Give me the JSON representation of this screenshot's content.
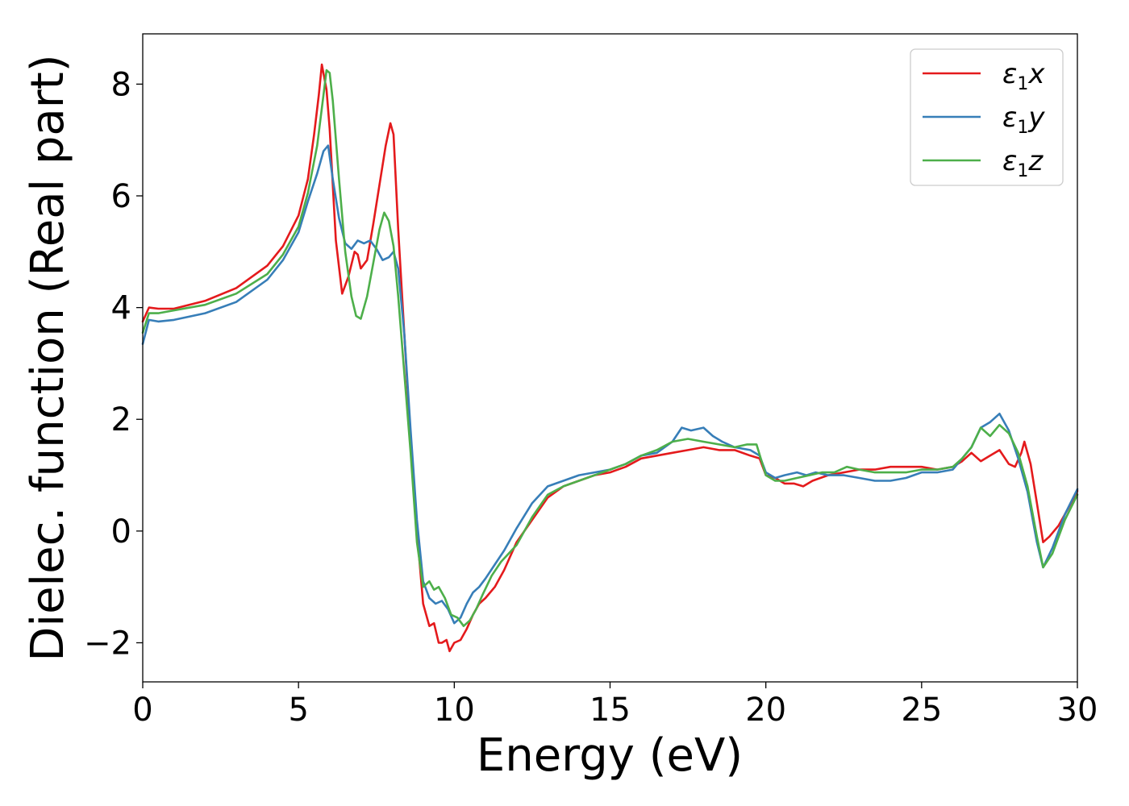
{
  "chart_data": {
    "type": "line",
    "xlabel": "Energy (eV)",
    "ylabel": "Dielec. function (Real part)",
    "xlim": [
      0,
      30
    ],
    "ylim": [
      -2.7,
      8.9
    ],
    "xticks": [
      0,
      5,
      10,
      15,
      20,
      25,
      30
    ],
    "xtick_labels": [
      "0",
      "5",
      "10",
      "15",
      "20",
      "25",
      "30"
    ],
    "yticks": [
      -2,
      0,
      2,
      4,
      6,
      8
    ],
    "ytick_labels": [
      "−2",
      "0",
      "2",
      "4",
      "6",
      "8"
    ],
    "grid": false,
    "legend": {
      "position": "top-right",
      "entries": [
        {
          "symbol": "ε",
          "sub": "1",
          "suffix": "x"
        },
        {
          "symbol": "ε",
          "sub": "1",
          "suffix": "y"
        },
        {
          "symbol": "ε",
          "sub": "1",
          "suffix": "z"
        }
      ]
    },
    "series": [
      {
        "color": "#e41a1c",
        "x": [
          0,
          0.2,
          0.5,
          1,
          2,
          3,
          4,
          4.5,
          5,
          5.3,
          5.5,
          5.65,
          5.75,
          5.9,
          6.0,
          6.2,
          6.4,
          6.6,
          6.8,
          6.9,
          7.0,
          7.2,
          7.4,
          7.6,
          7.8,
          7.95,
          8.05,
          8.2,
          8.4,
          8.6,
          8.8,
          9.0,
          9.2,
          9.35,
          9.5,
          9.6,
          9.75,
          9.85,
          10.0,
          10.2,
          10.4,
          10.6,
          10.8,
          11.0,
          11.3,
          11.6,
          12,
          12.5,
          13,
          13.5,
          14,
          14.5,
          15,
          15.5,
          16,
          16.5,
          17,
          17.5,
          18,
          18.5,
          19,
          19.5,
          19.8,
          20,
          20.3,
          20.6,
          20.9,
          21.2,
          21.5,
          22,
          22.5,
          23,
          23.5,
          24,
          24.5,
          25,
          25.5,
          26,
          26.3,
          26.6,
          26.9,
          27.2,
          27.5,
          27.8,
          28.0,
          28.2,
          28.3,
          28.5,
          28.7,
          28.9,
          29.1,
          29.4,
          29.7,
          30
        ],
        "y": [
          3.75,
          4.0,
          3.98,
          3.98,
          4.12,
          4.35,
          4.75,
          5.1,
          5.65,
          6.3,
          7.1,
          7.8,
          8.35,
          7.9,
          7.2,
          5.2,
          4.25,
          4.55,
          5.0,
          4.95,
          4.7,
          4.85,
          5.5,
          6.2,
          6.9,
          7.3,
          7.1,
          5.4,
          3.5,
          1.6,
          0.0,
          -1.3,
          -1.7,
          -1.65,
          -2.0,
          -2.0,
          -1.95,
          -2.15,
          -2.0,
          -1.95,
          -1.75,
          -1.5,
          -1.3,
          -1.2,
          -1.0,
          -0.7,
          -0.2,
          0.2,
          0.6,
          0.8,
          0.9,
          1.0,
          1.05,
          1.15,
          1.3,
          1.35,
          1.4,
          1.45,
          1.5,
          1.45,
          1.45,
          1.35,
          1.3,
          1.0,
          0.95,
          0.85,
          0.85,
          0.8,
          0.9,
          1.0,
          1.05,
          1.1,
          1.1,
          1.15,
          1.15,
          1.15,
          1.1,
          1.15,
          1.25,
          1.4,
          1.25,
          1.35,
          1.45,
          1.2,
          1.15,
          1.4,
          1.6,
          1.2,
          0.5,
          -0.2,
          -0.1,
          0.1,
          0.4,
          0.72
        ]
      },
      {
        "color": "#377eb8",
        "x": [
          0,
          0.2,
          0.5,
          1,
          2,
          3,
          4,
          4.5,
          5,
          5.3,
          5.6,
          5.8,
          5.95,
          6.1,
          6.3,
          6.5,
          6.7,
          6.9,
          7.1,
          7.3,
          7.5,
          7.7,
          7.9,
          8.05,
          8.2,
          8.4,
          8.6,
          8.8,
          9.0,
          9.2,
          9.4,
          9.6,
          9.8,
          10.0,
          10.2,
          10.4,
          10.6,
          10.8,
          11.0,
          11.3,
          11.6,
          12,
          12.5,
          13,
          13.5,
          14,
          14.5,
          15,
          15.5,
          16,
          16.5,
          17,
          17.3,
          17.6,
          18,
          18.3,
          18.6,
          19,
          19.5,
          19.8,
          20,
          20.3,
          20.6,
          21,
          21.3,
          21.6,
          22,
          22.5,
          23,
          23.5,
          24,
          24.5,
          25,
          25.5,
          26,
          26.3,
          26.6,
          26.9,
          27.2,
          27.5,
          27.8,
          28.1,
          28.4,
          28.7,
          28.9,
          29.2,
          29.6,
          30
        ],
        "y": [
          3.35,
          3.78,
          3.75,
          3.78,
          3.9,
          4.1,
          4.5,
          4.85,
          5.35,
          5.9,
          6.4,
          6.8,
          6.9,
          6.3,
          5.6,
          5.15,
          5.05,
          5.2,
          5.15,
          5.2,
          5.05,
          4.85,
          4.9,
          5.0,
          4.7,
          3.5,
          1.8,
          0.2,
          -0.9,
          -1.2,
          -1.3,
          -1.25,
          -1.4,
          -1.65,
          -1.55,
          -1.3,
          -1.1,
          -1.0,
          -0.85,
          -0.6,
          -0.35,
          0.05,
          0.5,
          0.8,
          0.9,
          1.0,
          1.05,
          1.1,
          1.2,
          1.35,
          1.4,
          1.6,
          1.85,
          1.8,
          1.85,
          1.7,
          1.6,
          1.5,
          1.45,
          1.35,
          1.05,
          0.95,
          1.0,
          1.05,
          1.0,
          1.05,
          1.0,
          1.0,
          0.95,
          0.9,
          0.9,
          0.95,
          1.05,
          1.05,
          1.1,
          1.3,
          1.5,
          1.85,
          1.95,
          2.1,
          1.8,
          1.3,
          0.7,
          -0.2,
          -0.65,
          -0.3,
          0.3,
          0.75
        ]
      },
      {
        "color": "#4daf4a",
        "x": [
          0,
          0.2,
          0.5,
          1,
          2,
          3,
          4,
          4.5,
          5,
          5.3,
          5.6,
          5.8,
          5.9,
          6.0,
          6.1,
          6.3,
          6.5,
          6.7,
          6.85,
          7.0,
          7.2,
          7.4,
          7.6,
          7.75,
          7.9,
          8.05,
          8.2,
          8.4,
          8.6,
          8.8,
          9.0,
          9.2,
          9.35,
          9.5,
          9.7,
          9.9,
          10.1,
          10.3,
          10.5,
          10.7,
          10.9,
          11.2,
          11.5,
          12,
          12.5,
          13,
          13.5,
          14,
          14.5,
          15,
          15.5,
          16,
          16.5,
          17,
          17.5,
          18,
          18.5,
          19,
          19.4,
          19.7,
          20,
          20.3,
          20.6,
          21,
          21.4,
          21.8,
          22.2,
          22.6,
          23,
          23.5,
          24,
          24.5,
          25,
          25.5,
          26,
          26.3,
          26.6,
          26.9,
          27.2,
          27.5,
          27.8,
          28.1,
          28.4,
          28.7,
          28.9,
          29.2,
          29.6,
          30
        ],
        "y": [
          3.55,
          3.9,
          3.9,
          3.95,
          4.05,
          4.25,
          4.6,
          4.95,
          5.45,
          6.05,
          6.9,
          7.8,
          8.25,
          8.2,
          7.7,
          6.3,
          5.0,
          4.2,
          3.85,
          3.8,
          4.2,
          4.8,
          5.4,
          5.7,
          5.55,
          5.1,
          4.2,
          2.8,
          1.4,
          -0.2,
          -1.0,
          -0.9,
          -1.05,
          -1.0,
          -1.2,
          -1.5,
          -1.55,
          -1.7,
          -1.6,
          -1.4,
          -1.15,
          -0.8,
          -0.55,
          -0.25,
          0.25,
          0.65,
          0.8,
          0.9,
          1.0,
          1.1,
          1.2,
          1.35,
          1.45,
          1.6,
          1.65,
          1.6,
          1.55,
          1.5,
          1.55,
          1.55,
          1.0,
          0.9,
          0.9,
          0.95,
          1.0,
          1.05,
          1.05,
          1.15,
          1.1,
          1.05,
          1.05,
          1.05,
          1.1,
          1.1,
          1.15,
          1.3,
          1.5,
          1.85,
          1.7,
          1.9,
          1.75,
          1.4,
          0.8,
          -0.1,
          -0.65,
          -0.4,
          0.2,
          0.65
        ]
      }
    ]
  }
}
